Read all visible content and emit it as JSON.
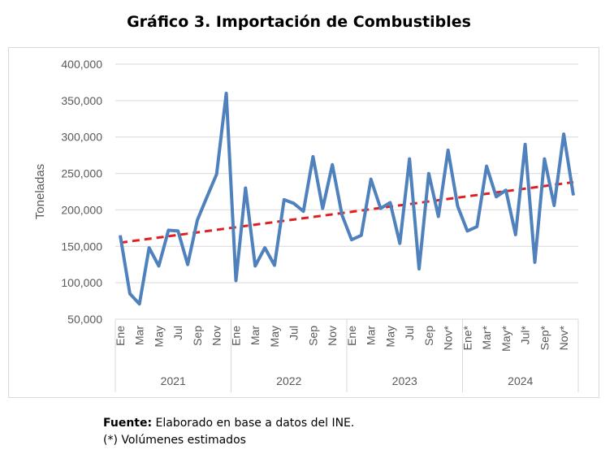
{
  "chart_data": {
    "type": "line",
    "title": "Gráfico 3. Importación de Combustibles",
    "ylabel": "Toneladas",
    "xlabel": "",
    "ylim": [
      50000,
      400000
    ],
    "yticks": [
      "50,000",
      "100,000",
      "150,000",
      "200,000",
      "250,000",
      "300,000",
      "350,000",
      "400,000"
    ],
    "yvalues": [
      50000,
      100000,
      150000,
      200000,
      250000,
      300000,
      350000,
      400000
    ],
    "grid": true,
    "series_color": "#4f81bd",
    "trend_color": "#e02020",
    "years": [
      "2021",
      "2022",
      "2023",
      "2024"
    ],
    "month_labels": [
      [
        "Ene",
        "Mar",
        "May",
        "Jul",
        "Sep",
        "Nov"
      ],
      [
        "Ene",
        "Mar",
        "May",
        "Jul",
        "Sep",
        "Nov"
      ],
      [
        "Ene",
        "Mar",
        "May",
        "Jul",
        "Sep",
        "Nov*"
      ],
      [
        "Ene*",
        "Mar*",
        "May*",
        "Jul*",
        "Sep*",
        "Nov*"
      ]
    ],
    "series": [
      {
        "values": [
          165000,
          85000,
          71000,
          148000,
          123000,
          172000,
          171000,
          125000,
          186000,
          218000,
          249000,
          360000,
          103000,
          230000,
          123000,
          148000,
          124000,
          214000,
          209000,
          198000,
          273000,
          202000,
          262000,
          193000,
          159000,
          165000,
          242000,
          202000,
          210000,
          154000,
          270000,
          119000,
          250000,
          191000,
          282000,
          205000,
          171000,
          177000,
          260000,
          218000,
          227000,
          166000,
          290000,
          128000,
          270000,
          206000,
          304000,
          220000
        ]
      }
    ],
    "trend": {
      "type": "linear",
      "start": 155000,
      "end": 238000
    }
  },
  "footer": {
    "source_label": "Fuente:",
    "source_text": " Elaborado en base a datos del INE.",
    "note": "(*) Volúmenes estimados"
  }
}
